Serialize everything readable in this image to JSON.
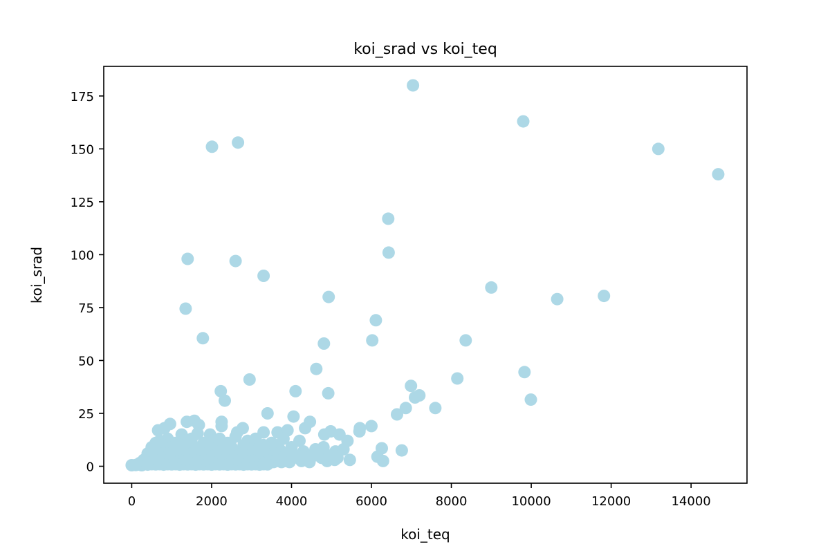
{
  "chart_data": {
    "type": "scatter",
    "title": "koi_srad vs koi_teq",
    "xlabel": "koi_teq",
    "ylabel": "koi_srad",
    "xlim": [
      -700,
      15400
    ],
    "ylim": [
      -8,
      189
    ],
    "xticks": [
      0,
      2000,
      4000,
      6000,
      8000,
      10000,
      12000,
      14000
    ],
    "yticks": [
      0,
      25,
      50,
      75,
      100,
      125,
      150,
      175
    ],
    "marker_color": "#add8e6",
    "grid": false,
    "series": [
      {
        "name": "koi_srad",
        "points": [
          [
            7040,
            180
          ],
          [
            9800,
            163
          ],
          [
            2660,
            153
          ],
          [
            2010,
            151
          ],
          [
            13180,
            150
          ],
          [
            14680,
            138
          ],
          [
            6420,
            117
          ],
          [
            6430,
            101
          ],
          [
            1400,
            98
          ],
          [
            2600,
            97
          ],
          [
            3300,
            90
          ],
          [
            9000,
            84.5
          ],
          [
            4930,
            80
          ],
          [
            11820,
            80.5
          ],
          [
            10650,
            79
          ],
          [
            1350,
            74.5
          ],
          [
            6110,
            69
          ],
          [
            1780,
            60.5
          ],
          [
            8360,
            59.5
          ],
          [
            6020,
            59.5
          ],
          [
            4810,
            58
          ],
          [
            4620,
            46
          ],
          [
            9830,
            44.5
          ],
          [
            8150,
            41.5
          ],
          [
            2950,
            41
          ],
          [
            6990,
            38
          ],
          [
            7200,
            33.5
          ],
          [
            7090,
            32.5
          ],
          [
            9990,
            31.5
          ],
          [
            4920,
            34.5
          ],
          [
            4100,
            35.5
          ],
          [
            2230,
            35.5
          ],
          [
            2330,
            31
          ],
          [
            7600,
            27.5
          ],
          [
            6860,
            27.5
          ],
          [
            6640,
            24.5
          ],
          [
            3400,
            25
          ],
          [
            4050,
            23.5
          ],
          [
            4460,
            21
          ],
          [
            1380,
            21
          ],
          [
            1570,
            21.5
          ],
          [
            2250,
            21
          ],
          [
            2250,
            19
          ],
          [
            1680,
            19.5
          ],
          [
            960,
            20
          ],
          [
            820,
            18
          ],
          [
            2780,
            18
          ],
          [
            5710,
            18
          ],
          [
            6000,
            19
          ],
          [
            5700,
            16.5
          ],
          [
            3300,
            16
          ],
          [
            3650,
            16
          ],
          [
            3900,
            17
          ],
          [
            4340,
            18
          ],
          [
            1650,
            15.5
          ],
          [
            1960,
            15
          ],
          [
            660,
            17
          ],
          [
            1250,
            15
          ],
          [
            2640,
            16
          ],
          [
            4980,
            16.5
          ],
          [
            5200,
            15
          ],
          [
            5400,
            12
          ],
          [
            4820,
            15
          ],
          [
            6260,
            8.5
          ],
          [
            6760,
            7.5
          ],
          [
            6150,
            4.5
          ],
          [
            6290,
            2.5
          ],
          [
            5460,
            3
          ],
          [
            5080,
            3
          ],
          [
            4890,
            2.5
          ],
          [
            4250,
            2.5
          ],
          [
            4450,
            2
          ],
          [
            4200,
            12
          ],
          [
            3800,
            13
          ],
          [
            3500,
            11
          ],
          [
            3100,
            13
          ],
          [
            2900,
            12
          ],
          [
            2600,
            14
          ],
          [
            2400,
            11
          ],
          [
            2200,
            13
          ],
          [
            2000,
            12
          ],
          [
            1800,
            11
          ],
          [
            1500,
            13
          ],
          [
            1300,
            12
          ],
          [
            1100,
            11
          ],
          [
            900,
            13
          ],
          [
            700,
            12
          ],
          [
            500,
            9
          ],
          [
            600,
            11
          ],
          [
            800,
            10
          ],
          [
            1000,
            9
          ],
          [
            1200,
            10
          ],
          [
            1400,
            8
          ],
          [
            1600,
            9
          ],
          [
            1900,
            10
          ],
          [
            2100,
            8
          ],
          [
            2500,
            9
          ],
          [
            2700,
            7
          ],
          [
            3000,
            8
          ],
          [
            3200,
            9
          ],
          [
            3400,
            7
          ],
          [
            3700,
            8
          ],
          [
            4000,
            9
          ],
          [
            4300,
            7
          ],
          [
            4600,
            8
          ],
          [
            4800,
            9
          ],
          [
            5100,
            7
          ],
          [
            5300,
            8
          ],
          [
            3600,
            10
          ],
          [
            3300,
            10
          ],
          [
            2800,
            10
          ],
          [
            2300,
            9
          ],
          [
            1700,
            7
          ],
          [
            1500,
            6
          ],
          [
            400,
            6
          ],
          [
            450,
            4
          ],
          [
            550,
            5
          ],
          [
            650,
            7
          ],
          [
            750,
            6
          ],
          [
            850,
            4
          ],
          [
            950,
            6
          ],
          [
            1050,
            5
          ],
          [
            1150,
            7
          ],
          [
            1250,
            6
          ],
          [
            1350,
            4
          ],
          [
            1450,
            5
          ],
          [
            1550,
            6
          ],
          [
            1650,
            4
          ],
          [
            1750,
            5
          ],
          [
            1850,
            6
          ],
          [
            1950,
            4
          ],
          [
            2050,
            5
          ],
          [
            2150,
            6
          ],
          [
            2250,
            4
          ],
          [
            2350,
            5
          ],
          [
            2450,
            6
          ],
          [
            2550,
            4
          ],
          [
            2650,
            5
          ],
          [
            2750,
            6
          ],
          [
            2850,
            4
          ],
          [
            2950,
            5
          ],
          [
            3050,
            6
          ],
          [
            3150,
            4
          ],
          [
            3250,
            5
          ],
          [
            3350,
            6
          ],
          [
            3450,
            4
          ],
          [
            3550,
            5
          ],
          [
            3650,
            6
          ],
          [
            3750,
            4
          ],
          [
            3850,
            5
          ],
          [
            3950,
            6
          ],
          [
            4050,
            4
          ],
          [
            4150,
            5
          ],
          [
            4350,
            4
          ],
          [
            4550,
            5
          ],
          [
            4750,
            4
          ],
          [
            4950,
            5
          ],
          [
            5150,
            4
          ],
          [
            300,
            3
          ],
          [
            350,
            2
          ],
          [
            450,
            1.5
          ],
          [
            550,
            2
          ],
          [
            650,
            2.5
          ],
          [
            750,
            2
          ],
          [
            850,
            2.5
          ],
          [
            950,
            2
          ],
          [
            1050,
            2.5
          ],
          [
            1150,
            2
          ],
          [
            1250,
            2.5
          ],
          [
            1350,
            2
          ],
          [
            1450,
            2.5
          ],
          [
            1550,
            2
          ],
          [
            1650,
            2.5
          ],
          [
            1750,
            2
          ],
          [
            1850,
            2.5
          ],
          [
            1950,
            2
          ],
          [
            2050,
            2.5
          ],
          [
            2150,
            2
          ],
          [
            2250,
            2.5
          ],
          [
            2350,
            2
          ],
          [
            2450,
            2.5
          ],
          [
            2550,
            2
          ],
          [
            2650,
            2.5
          ],
          [
            2750,
            2
          ],
          [
            2850,
            2.5
          ],
          [
            2950,
            2
          ],
          [
            3050,
            2.5
          ],
          [
            3150,
            2
          ],
          [
            3250,
            2.5
          ],
          [
            3350,
            2
          ],
          [
            3450,
            2.5
          ],
          [
            3550,
            2
          ],
          [
            3650,
            2.5
          ],
          [
            3750,
            2
          ],
          [
            3850,
            2.5
          ],
          [
            3950,
            2
          ],
          [
            200,
            1
          ],
          [
            250,
            0.5
          ],
          [
            150,
            0.8
          ],
          [
            100,
            0.6
          ],
          [
            0,
            0.5
          ],
          [
            200,
            1.5
          ],
          [
            300,
            1
          ],
          [
            400,
            0.8
          ],
          [
            500,
            1
          ],
          [
            600,
            0.9
          ],
          [
            700,
            1
          ],
          [
            800,
            0.8
          ],
          [
            900,
            1
          ],
          [
            1000,
            0.9
          ],
          [
            1100,
            1
          ],
          [
            1200,
            0.8
          ],
          [
            1300,
            1
          ],
          [
            1400,
            0.9
          ],
          [
            1500,
            1
          ],
          [
            1600,
            0.8
          ],
          [
            1700,
            1
          ],
          [
            1800,
            0.9
          ],
          [
            1900,
            1
          ],
          [
            2000,
            0.8
          ],
          [
            2100,
            1
          ],
          [
            2200,
            0.9
          ],
          [
            2300,
            1
          ],
          [
            2400,
            0.8
          ],
          [
            2500,
            1
          ],
          [
            2600,
            0.9
          ],
          [
            2700,
            1
          ],
          [
            2800,
            0.8
          ],
          [
            2900,
            1
          ],
          [
            3000,
            0.9
          ],
          [
            3100,
            1
          ],
          [
            3200,
            0.8
          ],
          [
            3300,
            1
          ],
          [
            3400,
            0.9
          ]
        ]
      }
    ]
  }
}
